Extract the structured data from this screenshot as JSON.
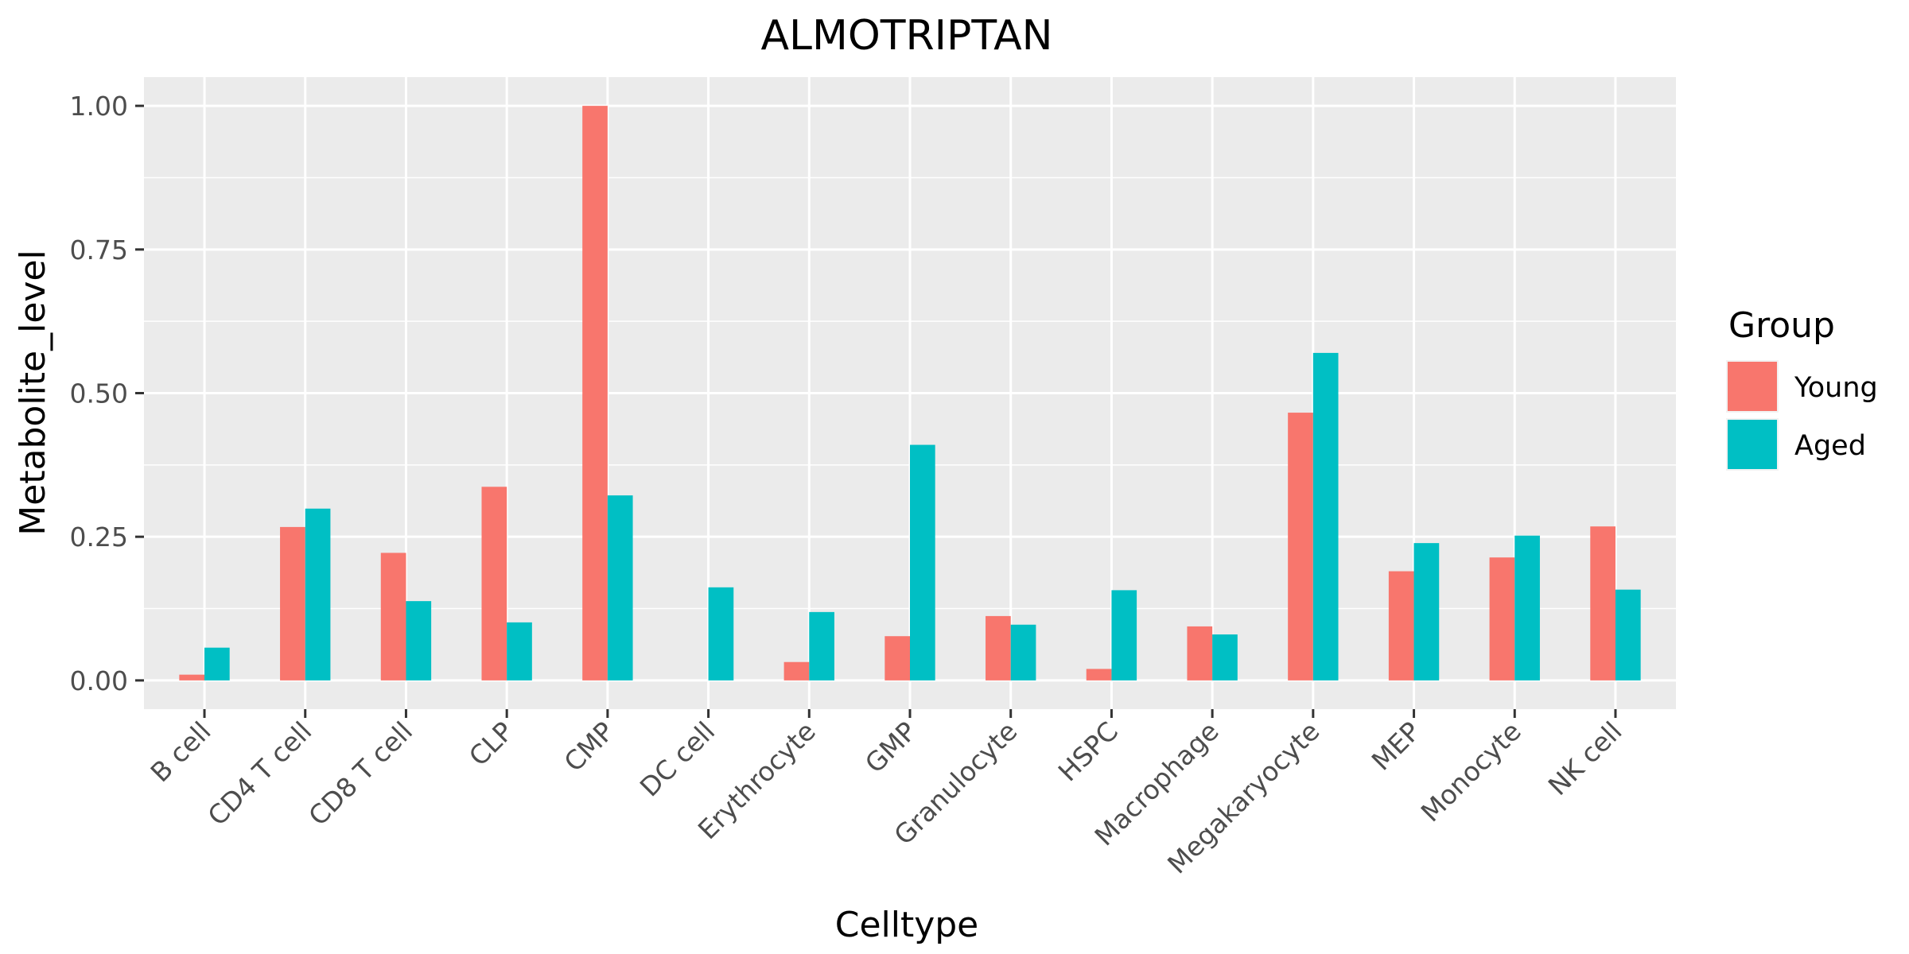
{
  "chart_data": {
    "type": "bar",
    "title": "ALMOTRIPTAN",
    "xlabel": "Celltype",
    "ylabel": "Metabolite_level",
    "categories": [
      "B cell",
      "CD4 T cell",
      "CD8 T cell",
      "CLP",
      "CMP",
      "DC cell",
      "Erythrocyte",
      "GMP",
      "Granulocyte",
      "HSPC",
      "Macrophage",
      "Megakaryocyte",
      "MEP",
      "Monocyte",
      "NK cell"
    ],
    "series": [
      {
        "name": "Young",
        "color": "#F8766D",
        "values": [
          0.01,
          0.267,
          0.222,
          0.337,
          1.0,
          0.0,
          0.032,
          0.077,
          0.112,
          0.02,
          0.094,
          0.466,
          0.19,
          0.214,
          0.268
        ]
      },
      {
        "name": "Aged",
        "color": "#00BFC4",
        "values": [
          0.057,
          0.299,
          0.138,
          0.101,
          0.322,
          0.162,
          0.119,
          0.41,
          0.097,
          0.157,
          0.08,
          0.57,
          0.239,
          0.252,
          0.158
        ]
      }
    ],
    "ylim": [
      -0.05,
      1.05
    ],
    "yticks": [
      0.0,
      0.25,
      0.5,
      0.75,
      1.0
    ],
    "ytick_labels": [
      "0.00",
      "0.25",
      "0.50",
      "0.75",
      "1.00"
    ],
    "legend": {
      "title": "Group",
      "position": "right"
    },
    "grid": true,
    "panel_background": "#EBEBEB"
  }
}
